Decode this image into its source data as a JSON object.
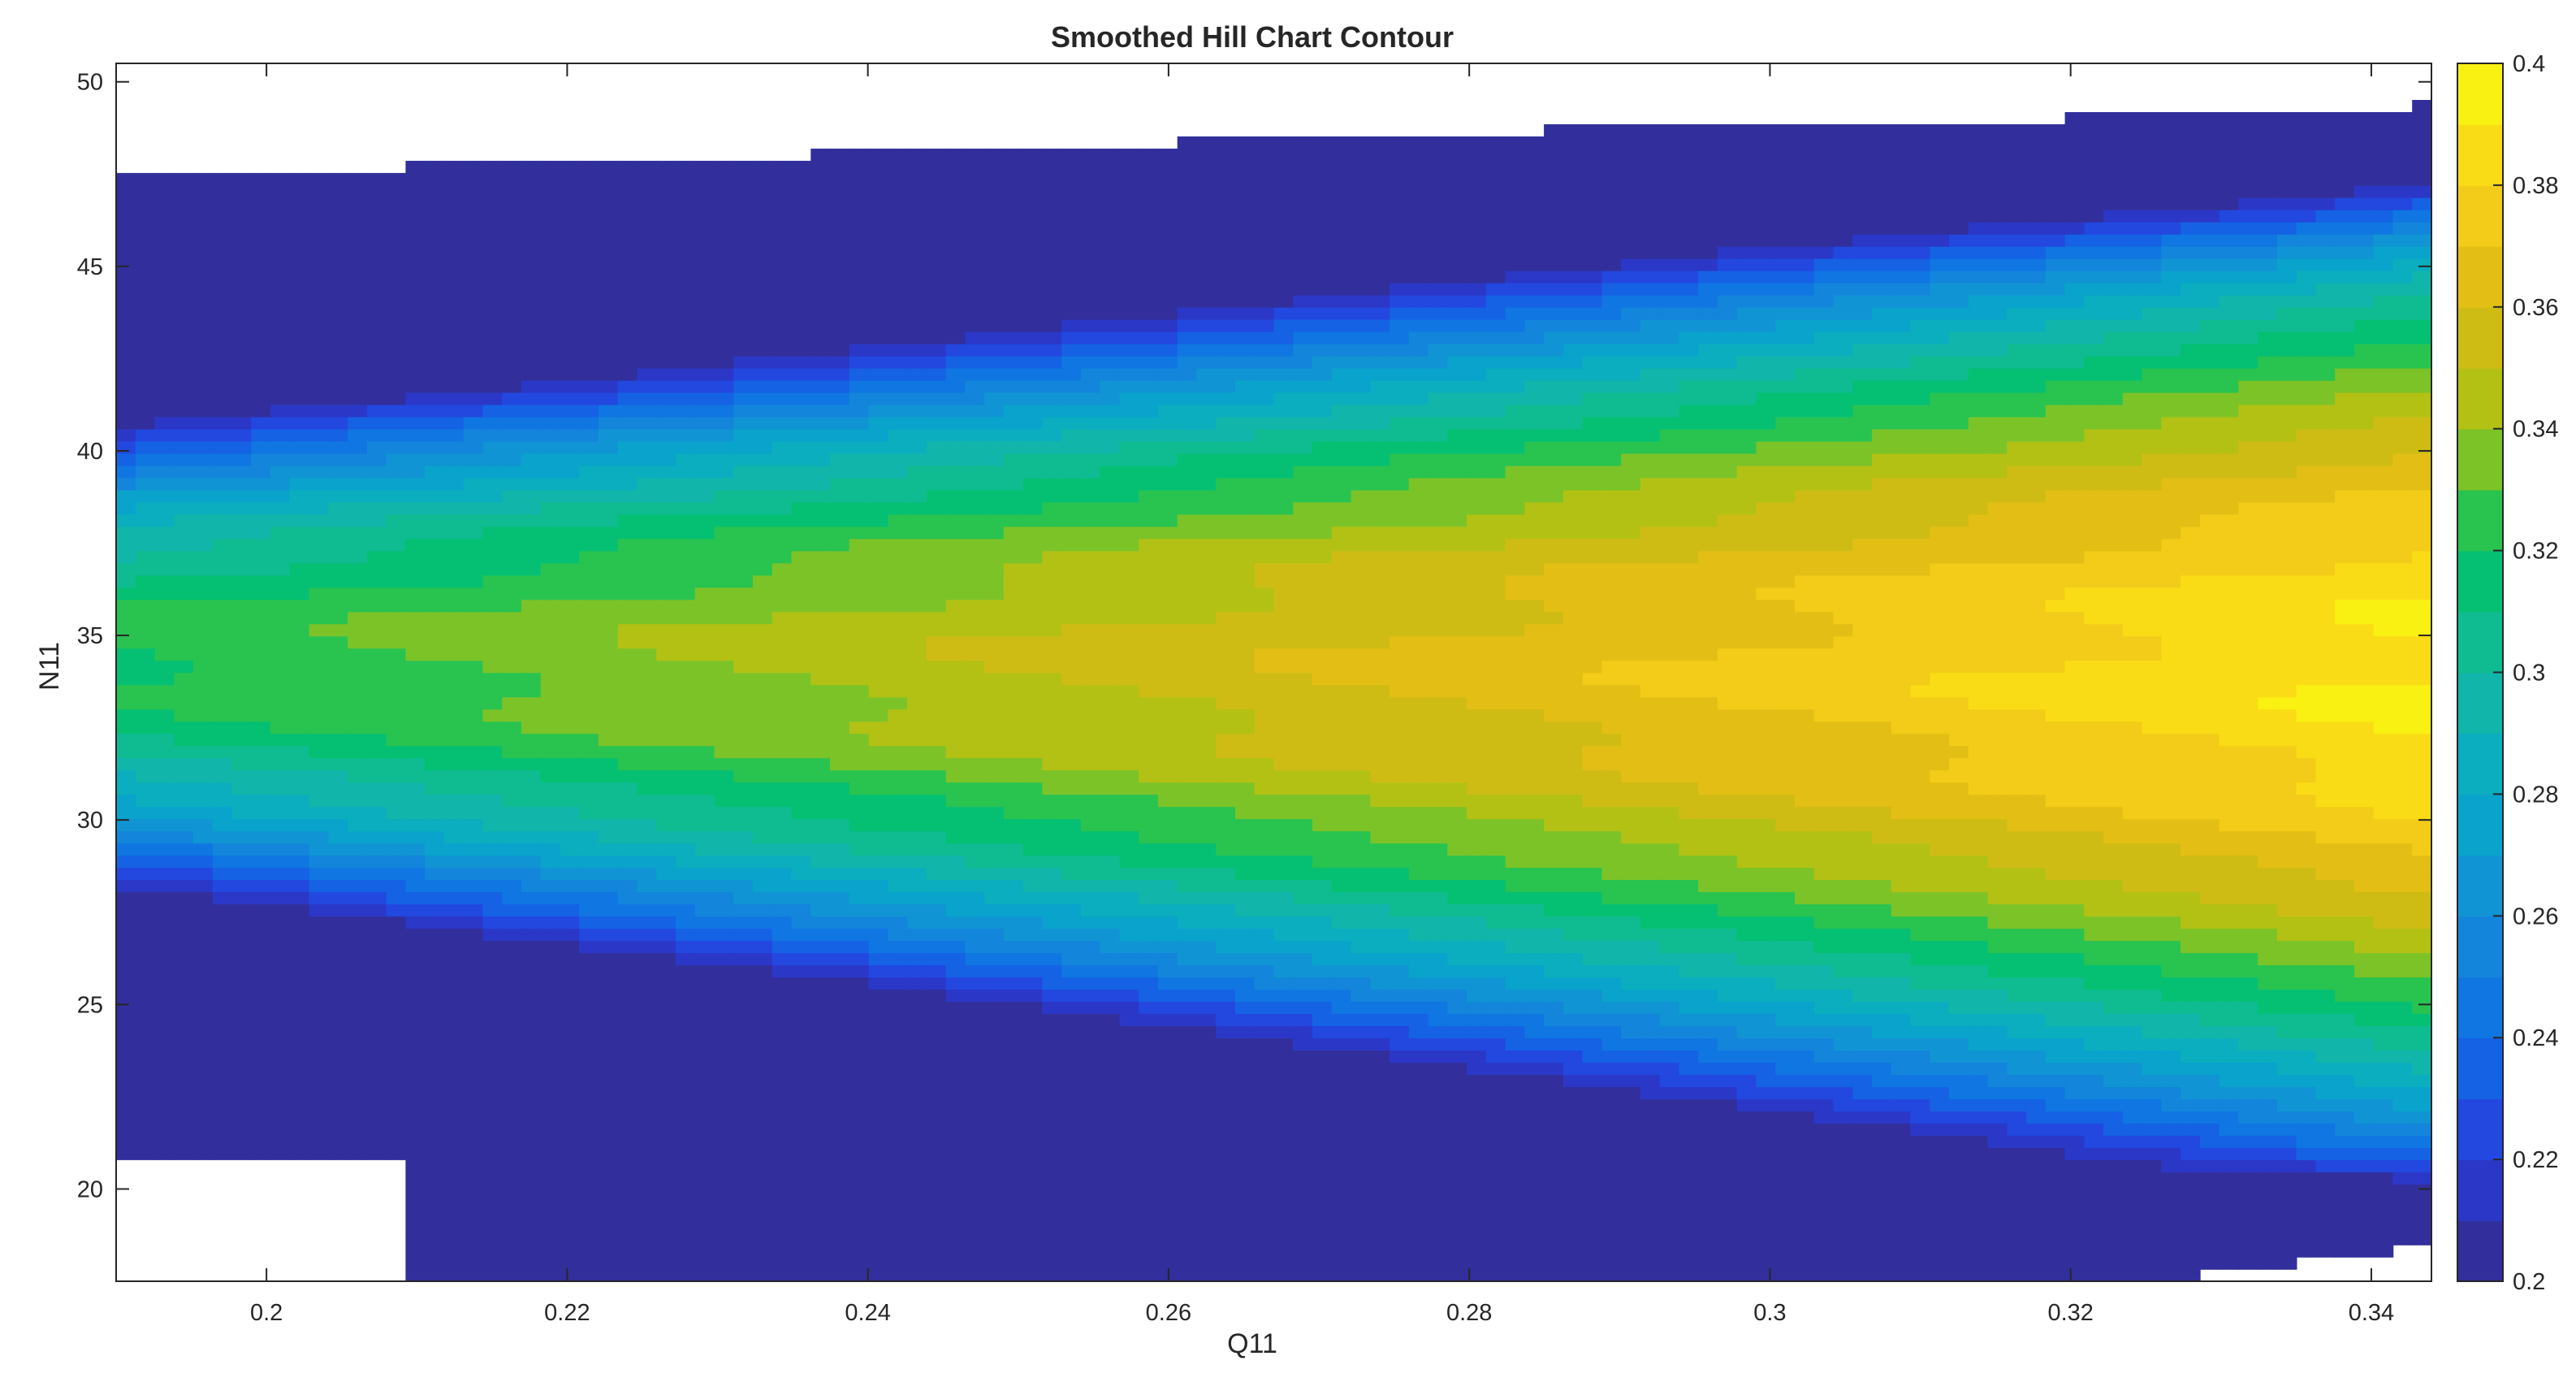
{
  "chart_data": {
    "type": "contourf",
    "title": "Smoothed Hill Chart Contour",
    "xlabel": "Q11",
    "ylabel": "N11",
    "xlim": [
      0.19,
      0.344
    ],
    "ylim": [
      17.5,
      50.5
    ],
    "xticks": [
      0.2,
      0.22,
      0.24,
      0.26,
      0.28,
      0.3,
      0.32,
      0.34
    ],
    "xtick_labels": [
      "0.2",
      "0.22",
      "0.24",
      "0.26",
      "0.28",
      "0.3",
      "0.32",
      "0.34"
    ],
    "yticks": [
      20,
      25,
      30,
      35,
      40,
      45,
      50
    ],
    "ytick_labels": [
      "20",
      "25",
      "30",
      "35",
      "40",
      "45",
      "50"
    ],
    "colorbar": {
      "range": [
        0.2,
        0.4
      ],
      "ticks": [
        0.2,
        0.22,
        0.24,
        0.26,
        0.28,
        0.3,
        0.32,
        0.34,
        0.36,
        0.38,
        0.4
      ],
      "tick_labels": [
        "0.2",
        "0.22",
        "0.24",
        "0.26",
        "0.28",
        "0.3",
        "0.32",
        "0.34",
        "0.36",
        "0.38",
        "0.4"
      ],
      "colormap": "parula",
      "level_step": 0.01
    },
    "peak": {
      "q11": 0.342,
      "n11": 33,
      "value": 0.395
    },
    "ridge_n11": 34.5,
    "valid_region": {
      "top_boundary": [
        [
          0.19,
          47.6
        ],
        [
          0.21,
          47.7
        ],
        [
          0.25,
          48.2
        ],
        [
          0.3,
          48.9
        ],
        [
          0.334,
          49.1
        ],
        [
          0.344,
          49.4
        ]
      ],
      "bottom_boundary": [
        [
          0.21,
          17.5
        ],
        [
          0.325,
          17.5
        ],
        [
          0.335,
          18.0
        ],
        [
          0.344,
          18.5
        ]
      ],
      "lower_left_cutout": {
        "q11_max": 0.209,
        "n11_max": 20.7
      }
    },
    "grid": false,
    "grid_resolution": [
      120,
      100
    ]
  }
}
